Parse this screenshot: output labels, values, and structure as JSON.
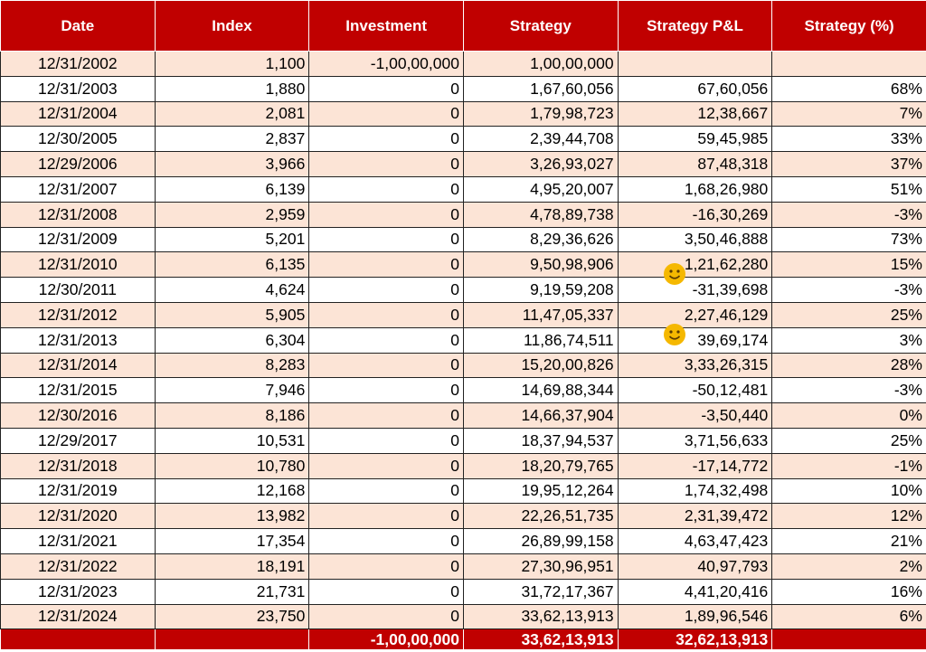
{
  "table": {
    "header": [
      "Date",
      "Index",
      "Investment",
      "Strategy",
      "Strategy P&L",
      "Strategy  (%)"
    ],
    "rows": [
      [
        "12/31/2002",
        "1,100",
        "-1,00,00,000",
        "1,00,00,000",
        null,
        null
      ],
      [
        "12/31/2003",
        "1,880",
        "0",
        "1,67,60,056",
        "67,60,056",
        "68%"
      ],
      [
        "12/31/2004",
        "2,081",
        "0",
        "1,79,98,723",
        "12,38,667",
        "7%"
      ],
      [
        "12/30/2005",
        "2,837",
        "0",
        "2,39,44,708",
        "59,45,985",
        "33%"
      ],
      [
        "12/29/2006",
        "3,966",
        "0",
        "3,26,93,027",
        "87,48,318",
        "37%"
      ],
      [
        "12/31/2007",
        "6,139",
        "0",
        "4,95,20,007",
        "1,68,26,980",
        "51%"
      ],
      [
        "12/31/2008",
        "2,959",
        "0",
        "4,78,89,738",
        "-16,30,269",
        "-3%"
      ],
      [
        "12/31/2009",
        "5,201",
        "0",
        "8,29,36,626",
        "3,50,46,888",
        "73%"
      ],
      [
        "12/31/2010",
        "6,135",
        "0",
        "9,50,98,906",
        "1,21,62,280",
        "15%"
      ],
      [
        "12/30/2011",
        "4,624",
        "0",
        "9,19,59,208",
        "-31,39,698",
        "-3%"
      ],
      [
        "12/31/2012",
        "5,905",
        "0",
        "11,47,05,337",
        "2,27,46,129",
        "25%"
      ],
      [
        "12/31/2013",
        "6,304",
        "0",
        "11,86,74,511",
        "39,69,174",
        "3%"
      ],
      [
        "12/31/2014",
        "8,283",
        "0",
        "15,20,00,826",
        "3,33,26,315",
        "28%"
      ],
      [
        "12/31/2015",
        "7,946",
        "0",
        "14,69,88,344",
        "-50,12,481",
        "-3%"
      ],
      [
        "12/30/2016",
        "8,186",
        "0",
        "14,66,37,904",
        "-3,50,440",
        "0%"
      ],
      [
        "12/29/2017",
        "10,531",
        "0",
        "18,37,94,537",
        "3,71,56,633",
        "25%"
      ],
      [
        "12/31/2018",
        "10,780",
        "0",
        "18,20,79,765",
        "-17,14,772",
        "-1%"
      ],
      [
        "12/31/2019",
        "12,168",
        "0",
        "19,95,12,264",
        "1,74,32,498",
        "10%"
      ],
      [
        "12/31/2020",
        "13,982",
        "0",
        "22,26,51,735",
        "2,31,39,472",
        "12%"
      ],
      [
        "12/31/2021",
        "17,354",
        "0",
        "26,89,99,158",
        "4,63,47,423",
        "21%"
      ],
      [
        "12/31/2022",
        "18,191",
        "0",
        "27,30,96,951",
        "40,97,793",
        "2%"
      ],
      [
        "12/31/2023",
        "21,731",
        "0",
        "31,72,17,367",
        "4,41,20,416",
        "16%"
      ],
      [
        "12/31/2024",
        "23,750",
        "0",
        "33,62,13,913",
        "1,89,96,546",
        "6%"
      ]
    ],
    "footer": [
      null,
      null,
      "-1,00,00,000",
      "33,62,13,913",
      "32,62,13,913",
      null
    ]
  }
}
